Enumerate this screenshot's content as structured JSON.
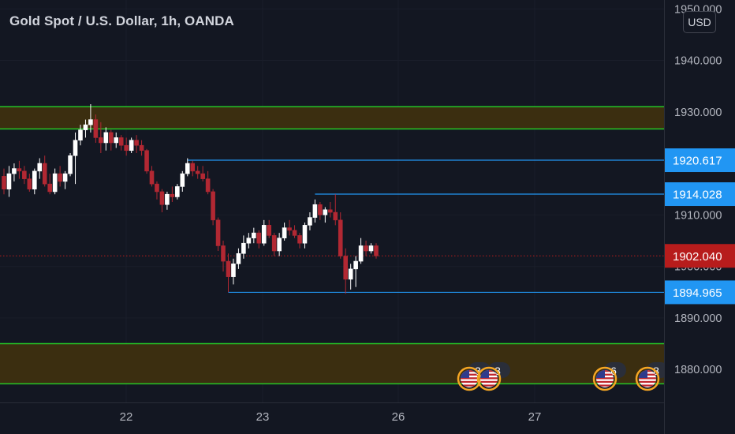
{
  "chart_title": "Gold Spot / U.S. Dollar, 1h, OANDA",
  "currency_button": "USD",
  "colors": {
    "background": "#131722",
    "up_candle": "#ffffff",
    "down_candle": "#b22833",
    "zone_line": "#26c626",
    "zone_fill": "#3b2e10",
    "level_line": "#2196f3",
    "price_label": "#2196f3",
    "current_price": "#b71c1c"
  },
  "chart_data": {
    "type": "candlestick",
    "title": "Gold Spot / U.S. Dollar, 1h, OANDA",
    "y_axis": {
      "ticks": [
        "1950.000",
        "1940.000",
        "1930.000",
        "1910.000",
        "1900.000",
        "1890.000",
        "1880.000"
      ],
      "tick_values": [
        1950,
        1940,
        1930,
        1910,
        1900,
        1890,
        1880
      ],
      "ylim": [
        1874.5,
        1950.5
      ]
    },
    "x_axis": {
      "labels": [
        "22",
        "23",
        "26",
        "27"
      ]
    },
    "supply_zone": {
      "top": 1931.0,
      "bottom": 1926.7
    },
    "demand_zone": {
      "top": 1885.0,
      "bottom": 1877.2
    },
    "levels": [
      {
        "label": "1920.617",
        "value": 1920.617
      },
      {
        "label": "1914.028",
        "value": 1914.028
      },
      {
        "label": "1894.965",
        "value": 1894.965
      }
    ],
    "current_price": {
      "label": "1902.040",
      "value": 1902.04
    },
    "event_badges": [
      {
        "count": "3"
      },
      {
        "count": "3"
      },
      {
        "count": "6"
      },
      {
        "count": "8"
      }
    ],
    "candles": [
      [
        1917.5,
        1919.0,
        1914.0,
        1915.0
      ],
      [
        1915.0,
        1919.5,
        1913.5,
        1918.0
      ],
      [
        1918.0,
        1920.0,
        1916.5,
        1919.0
      ],
      [
        1919.0,
        1920.5,
        1917.0,
        1918.5
      ],
      [
        1918.5,
        1919.5,
        1916.0,
        1917.0
      ],
      [
        1917.0,
        1918.0,
        1914.5,
        1915.0
      ],
      [
        1915.0,
        1919.0,
        1914.0,
        1918.5
      ],
      [
        1918.5,
        1921.0,
        1917.0,
        1920.0
      ],
      [
        1920.0,
        1921.5,
        1915.5,
        1916.0
      ],
      [
        1916.0,
        1918.0,
        1914.0,
        1914.5
      ],
      [
        1914.5,
        1919.0,
        1914.0,
        1918.0
      ],
      [
        1918.0,
        1919.5,
        1915.5,
        1916.5
      ],
      [
        1916.5,
        1918.5,
        1915.0,
        1918.0
      ],
      [
        1918.0,
        1922.0,
        1917.5,
        1921.5
      ],
      [
        1921.5,
        1926.0,
        1916.0,
        1924.5
      ],
      [
        1924.5,
        1927.5,
        1923.5,
        1926.5
      ],
      [
        1926.5,
        1928.5,
        1925.0,
        1927.5
      ],
      [
        1927.5,
        1931.5,
        1926.0,
        1928.5
      ],
      [
        1928.5,
        1929.5,
        1924.0,
        1925.0
      ],
      [
        1925.0,
        1928.0,
        1922.0,
        1924.0
      ],
      [
        1924.0,
        1927.0,
        1922.5,
        1926.0
      ],
      [
        1926.0,
        1926.5,
        1922.5,
        1924.0
      ],
      [
        1924.0,
        1926.0,
        1923.0,
        1925.0
      ],
      [
        1925.0,
        1925.5,
        1922.5,
        1923.5
      ],
      [
        1923.5,
        1925.0,
        1921.5,
        1922.5
      ],
      [
        1922.5,
        1925.0,
        1922.0,
        1924.5
      ],
      [
        1924.5,
        1925.5,
        1922.0,
        1923.5
      ],
      [
        1923.5,
        1924.5,
        1921.5,
        1922.5
      ],
      [
        1922.5,
        1922.8,
        1918.0,
        1918.5
      ],
      [
        1918.5,
        1919.5,
        1915.5,
        1916.0
      ],
      [
        1916.0,
        1916.5,
        1913.0,
        1914.5
      ],
      [
        1914.5,
        1915.0,
        1910.5,
        1912.0
      ],
      [
        1912.0,
        1914.5,
        1911.0,
        1914.0
      ],
      [
        1914.0,
        1915.5,
        1912.5,
        1913.5
      ],
      [
        1913.5,
        1916.0,
        1913.0,
        1915.5
      ],
      [
        1915.5,
        1918.5,
        1914.5,
        1918.0
      ],
      [
        1918.0,
        1921.0,
        1917.5,
        1920.0
      ],
      [
        1920.0,
        1920.5,
        1917.5,
        1918.5
      ],
      [
        1918.5,
        1919.5,
        1917.0,
        1918.0
      ],
      [
        1918.0,
        1919.5,
        1916.5,
        1917.0
      ],
      [
        1917.0,
        1918.5,
        1914.0,
        1914.5
      ],
      [
        1914.5,
        1915.0,
        1908.0,
        1909.0
      ],
      [
        1909.0,
        1909.5,
        1903.0,
        1904.0
      ],
      [
        1904.0,
        1905.0,
        1899.0,
        1901.0
      ],
      [
        1901.0,
        1902.5,
        1895.0,
        1898.0
      ],
      [
        1898.0,
        1901.5,
        1896.5,
        1900.5
      ],
      [
        1900.5,
        1903.5,
        1899.5,
        1902.5
      ],
      [
        1902.5,
        1906.0,
        1901.5,
        1904.5
      ],
      [
        1904.5,
        1906.5,
        1903.5,
        1905.5
      ],
      [
        1905.5,
        1907.5,
        1904.5,
        1906.5
      ],
      [
        1906.5,
        1907.0,
        1903.5,
        1904.5
      ],
      [
        1904.5,
        1909.0,
        1904.0,
        1908.0
      ],
      [
        1908.0,
        1909.0,
        1905.5,
        1906.0
      ],
      [
        1906.0,
        1906.5,
        1902.0,
        1903.0
      ],
      [
        1903.0,
        1906.5,
        1902.0,
        1905.5
      ],
      [
        1905.5,
        1908.5,
        1905.0,
        1907.5
      ],
      [
        1907.5,
        1909.0,
        1906.0,
        1907.0
      ],
      [
        1907.0,
        1908.0,
        1905.5,
        1906.0
      ],
      [
        1906.0,
        1906.5,
        1903.5,
        1904.5
      ],
      [
        1904.5,
        1908.5,
        1903.5,
        1908.0
      ],
      [
        1908.0,
        1910.5,
        1907.0,
        1909.5
      ],
      [
        1909.5,
        1913.0,
        1908.5,
        1912.0
      ],
      [
        1912.0,
        1912.5,
        1909.0,
        1910.0
      ],
      [
        1910.0,
        1911.5,
        1908.5,
        1911.0
      ],
      [
        1911.0,
        1912.5,
        1909.5,
        1910.5
      ],
      [
        1910.5,
        1914.0,
        1908.0,
        1909.0
      ],
      [
        1909.0,
        1910.5,
        1901.5,
        1902.0
      ],
      [
        1902.0,
        1903.5,
        1894.7,
        1897.5
      ],
      [
        1897.5,
        1900.5,
        1895.5,
        1899.5
      ],
      [
        1899.5,
        1902.0,
        1896.0,
        1901.0
      ],
      [
        1901.0,
        1905.5,
        1900.5,
        1904.0
      ],
      [
        1904.0,
        1905.0,
        1902.0,
        1903.0
      ],
      [
        1903.0,
        1904.5,
        1902.5,
        1904.0
      ],
      [
        1904.0,
        1904.5,
        1901.5,
        1902.04
      ]
    ]
  }
}
